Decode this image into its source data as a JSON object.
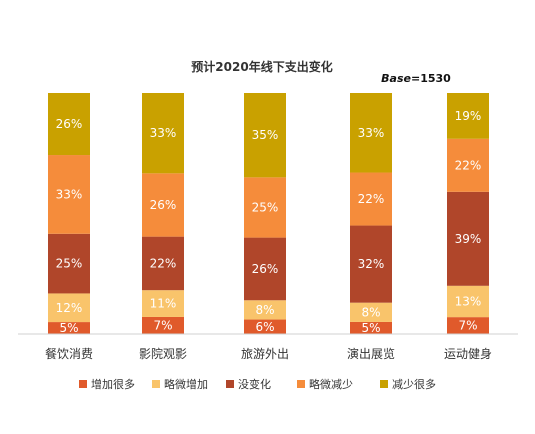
{
  "chart_data": {
    "type": "bar",
    "stacked": true,
    "normalized": true,
    "title": "预计2020年线下支出变化",
    "base_label": "Base",
    "base_value": "=1530",
    "categories": [
      "餐饮消费",
      "影院观影",
      "旅游外出",
      "演出展览",
      "运动健身"
    ],
    "ylim": [
      0,
      100
    ],
    "grid": false,
    "legend_position": "bottom",
    "series": [
      {
        "name": "增加很多",
        "color": "#e05a2b",
        "values": [
          5,
          7,
          6,
          5,
          7
        ]
      },
      {
        "name": "略微增加",
        "color": "#f9c46b",
        "values": [
          12,
          11,
          8,
          8,
          13
        ]
      },
      {
        "name": "没变化",
        "color": "#b0462a",
        "values": [
          25,
          22,
          26,
          32,
          39
        ]
      },
      {
        "name": "略微减少",
        "color": "#f58c3b",
        "values": [
          33,
          26,
          25,
          22,
          22
        ]
      },
      {
        "name": "减少很多",
        "color": "#c9a100",
        "values": [
          26,
          33,
          35,
          33,
          19
        ]
      }
    ]
  }
}
